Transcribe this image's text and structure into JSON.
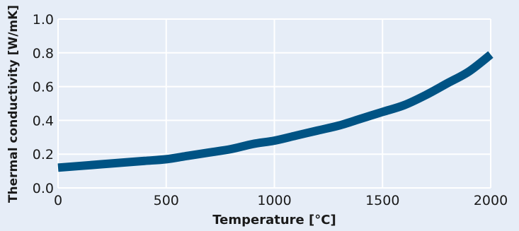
{
  "colors": {
    "background": "#e6edf7",
    "plot_background": "#e6edf7",
    "grid": "#ffffff",
    "axis_text": "#1a1a1a",
    "series": "#005384"
  },
  "chart_data": {
    "type": "line",
    "title": "",
    "xlabel": "Temperature [°C]",
    "ylabel": "Thermal conductivity [W/mK]",
    "xlim": [
      0,
      2000
    ],
    "ylim": [
      0.0,
      1.0
    ],
    "xticks": [
      0,
      500,
      1000,
      1500,
      2000
    ],
    "xtick_labels": [
      "0",
      "500",
      "1000",
      "1500",
      "2000"
    ],
    "yticks": [
      0.0,
      0.2,
      0.4,
      0.6,
      0.8,
      1.0
    ],
    "ytick_labels": [
      "0.0",
      "0.2",
      "0.4",
      "0.6",
      "0.8",
      "1.0"
    ],
    "grid": true,
    "series": [
      {
        "x": [
          0,
          100,
          200,
          300,
          400,
          500,
          600,
          700,
          800,
          900,
          1000,
          1100,
          1200,
          1300,
          1400,
          1500,
          1600,
          1700,
          1800,
          1900,
          2000
        ],
        "y": [
          0.12,
          0.13,
          0.14,
          0.15,
          0.16,
          0.17,
          0.19,
          0.21,
          0.23,
          0.26,
          0.28,
          0.31,
          0.34,
          0.37,
          0.41,
          0.45,
          0.49,
          0.55,
          0.62,
          0.69,
          0.79
        ]
      }
    ]
  }
}
